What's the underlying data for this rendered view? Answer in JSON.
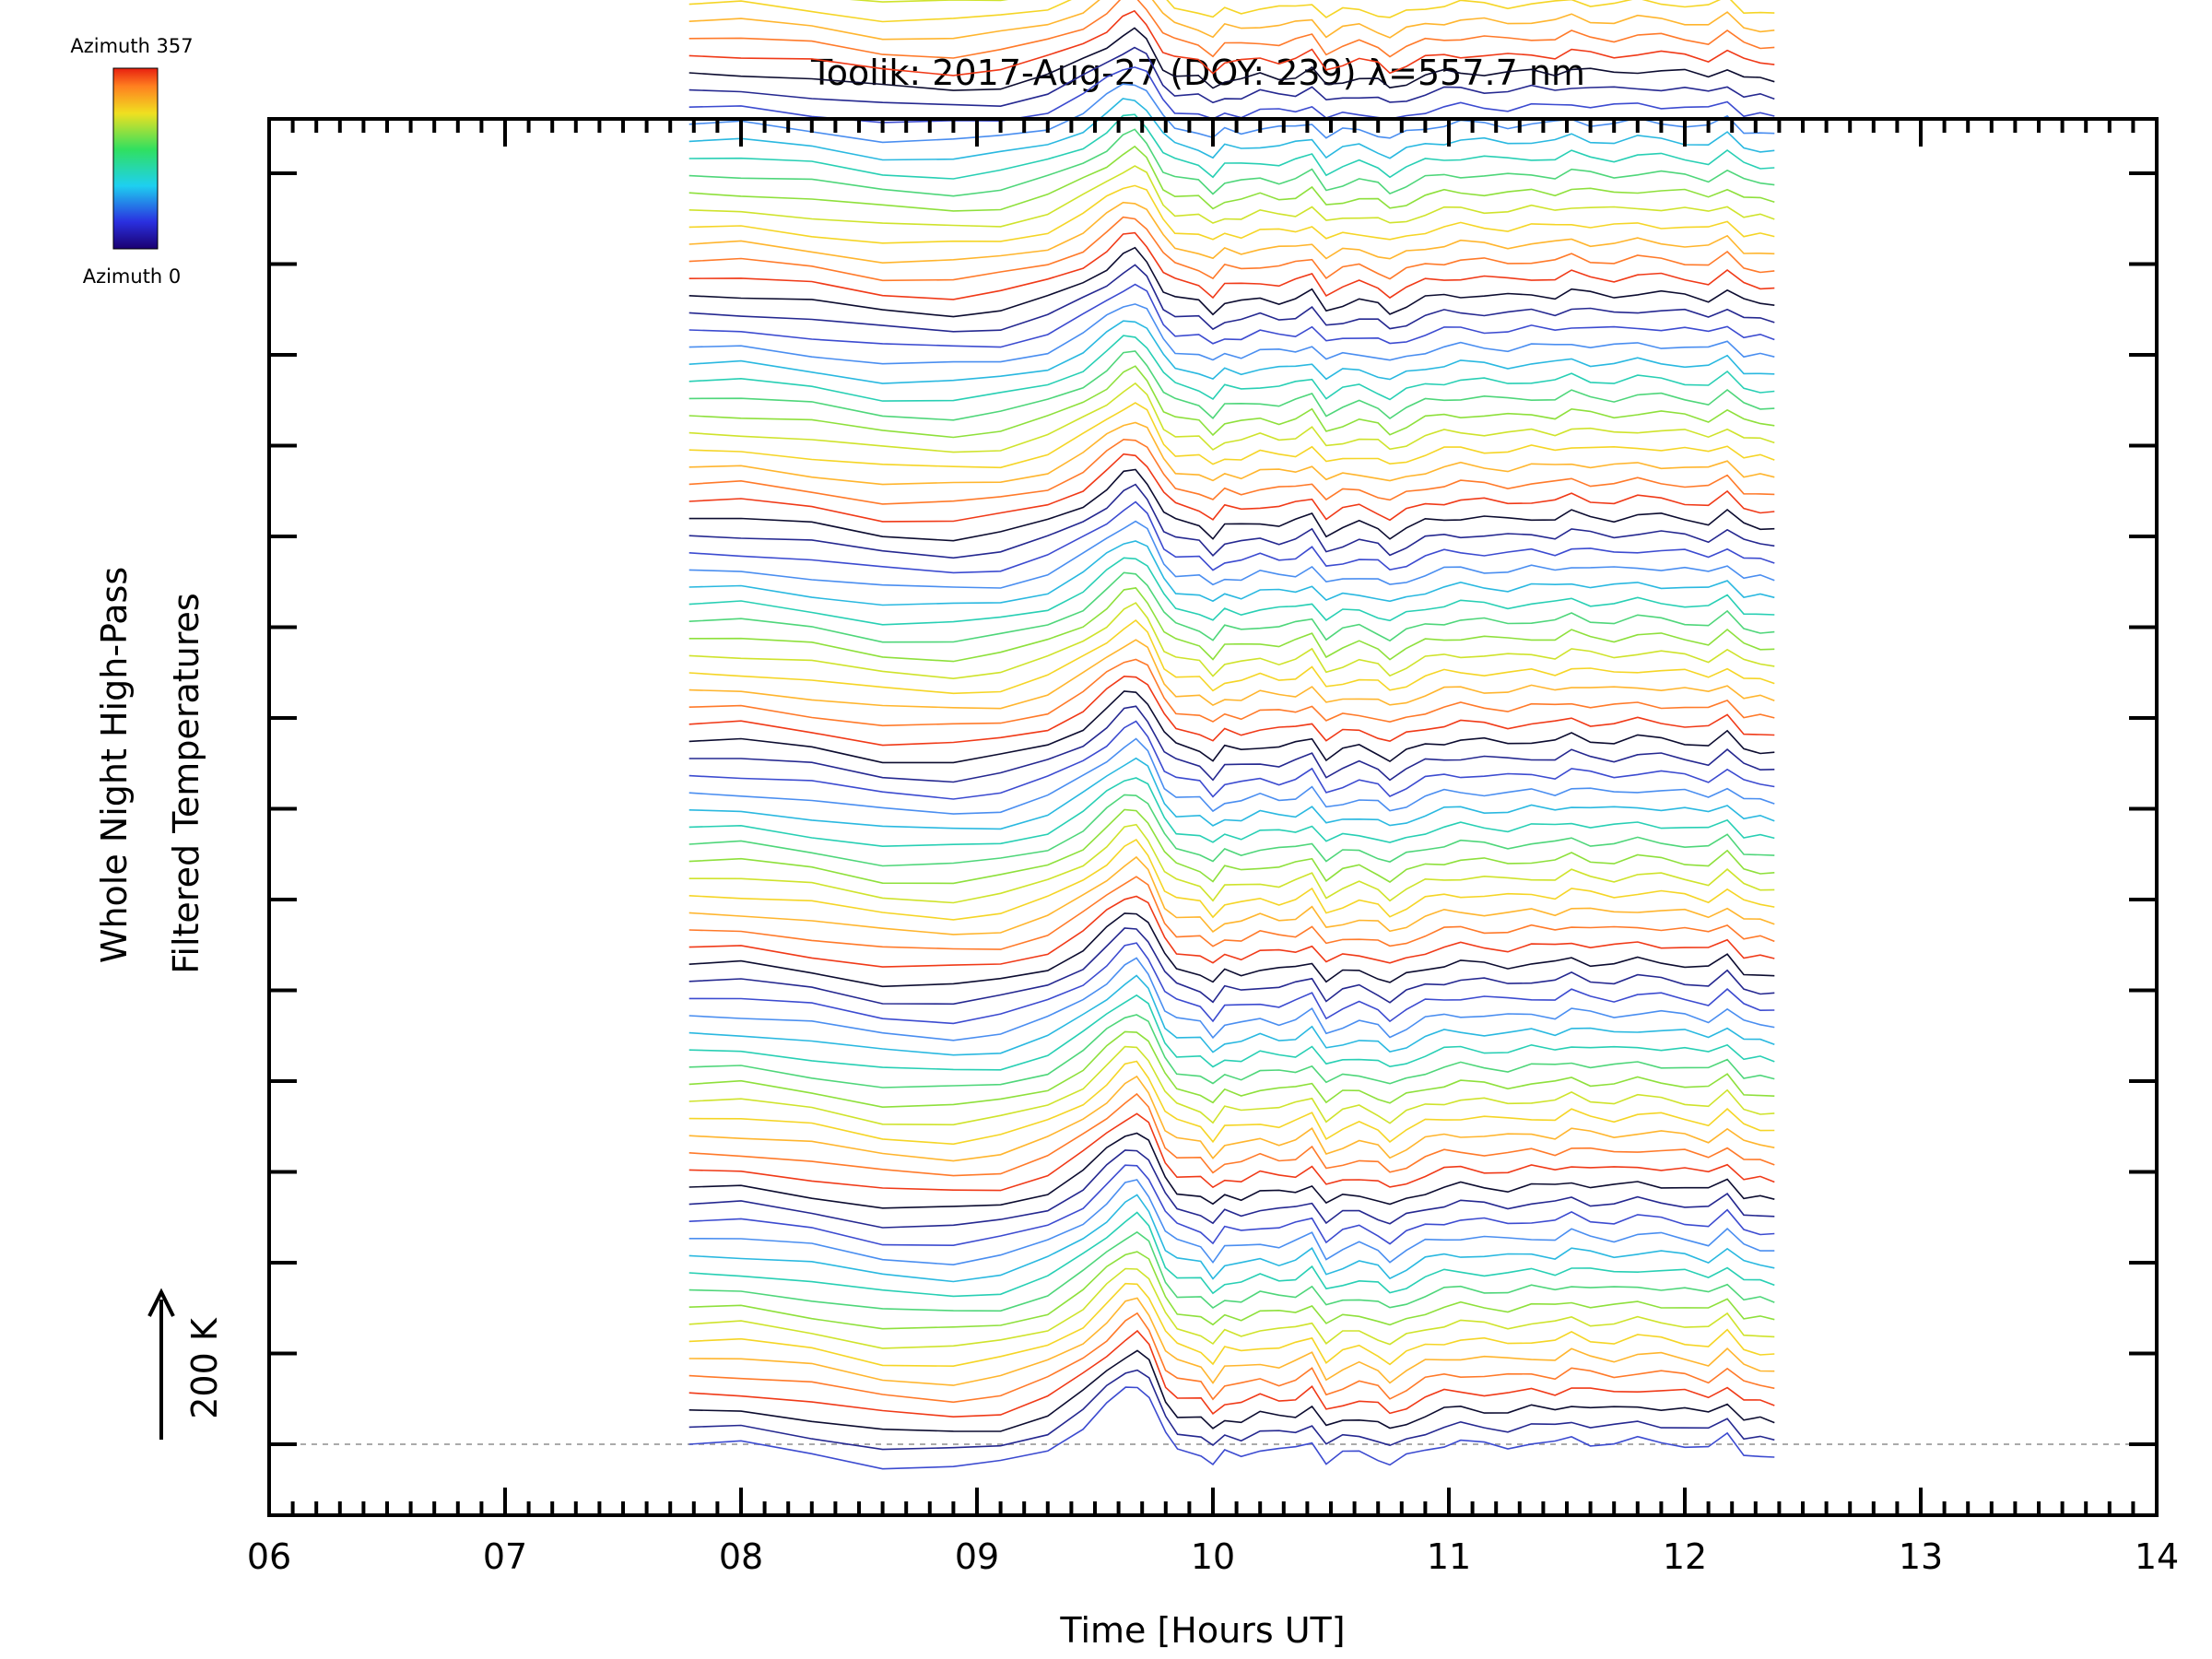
{
  "chart_data": {
    "type": "line",
    "title": "Toolik: 2017-Aug-27 (DOY: 239) λ=557.7 nm",
    "xlabel": "Time [Hours UT]",
    "ylabel_line1": "Whole Night High-Pass",
    "ylabel_line2": "Filtered Temperatures",
    "xlim": [
      6,
      14
    ],
    "x_tick_labels": [
      "06",
      "07",
      "08",
      "09",
      "10",
      "11",
      "12",
      "13",
      "14"
    ],
    "scale_bar_label": "200 K",
    "scale_bar_value_K": 200,
    "colorbar_top_label": "Azimuth 357",
    "colorbar_bottom_label": "Azimuth 0",
    "azimuth_range": [
      0,
      357
    ],
    "trace_count": 132,
    "trace_offset_K": 20,
    "base_profile": {
      "x": [
        7.78,
        8.0,
        8.3,
        8.6,
        8.9,
        9.1,
        9.3,
        9.45,
        9.55,
        9.63,
        9.68,
        9.73,
        9.8,
        9.85,
        9.95,
        10.0,
        10.05,
        10.12,
        10.2,
        10.28,
        10.35,
        10.42,
        10.48,
        10.55,
        10.62,
        10.7,
        10.75,
        10.82,
        10.9,
        10.98,
        11.05,
        11.15,
        11.25,
        11.35,
        11.45,
        11.52,
        11.6,
        11.7,
        11.8,
        11.9,
        12.0,
        12.1,
        12.18,
        12.25,
        12.32,
        12.38
      ],
      "y": [
        0,
        0,
        -10,
        -25,
        -28,
        -22,
        -5,
        20,
        45,
        65,
        70,
        55,
        10,
        -5,
        -10,
        -25,
        -10,
        -12,
        -5,
        -8,
        -5,
        5,
        -22,
        -12,
        -8,
        -15,
        -25,
        -15,
        -5,
        0,
        2,
        0,
        -2,
        2,
        0,
        8,
        2,
        0,
        5,
        3,
        0,
        -5,
        10,
        -10,
        -12,
        -15
      ]
    },
    "color_palette": [
      "#3c4bd0",
      "#252890",
      "#0c0c30",
      "#f03a18",
      "#ff7a2a",
      "#ffb52e",
      "#f5d526",
      "#cfe32c",
      "#8ee03c",
      "#4fd67a",
      "#28cfb4",
      "#2ab8e0",
      "#4a8ef0"
    ],
    "dashed_baseline_color": "#aaaaaa"
  }
}
